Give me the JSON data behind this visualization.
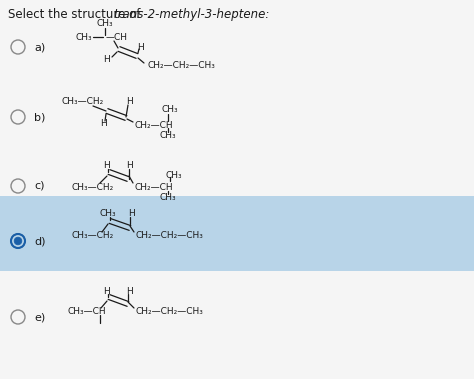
{
  "title_prefix": "Select the structure of ",
  "title_italic": "trans-2-methyl-3-heptene:",
  "background_color": "#e8e8e8",
  "white_bg": "#f5f5f5",
  "highlight_color": "#b8d4e8",
  "text_color": "#1a1a1a",
  "options": [
    "a)",
    "b)",
    "c)",
    "d)",
    "e)"
  ],
  "selected": "d",
  "fs_title": 8.5,
  "fs_option": 8.0,
  "fs_chem": 6.5
}
